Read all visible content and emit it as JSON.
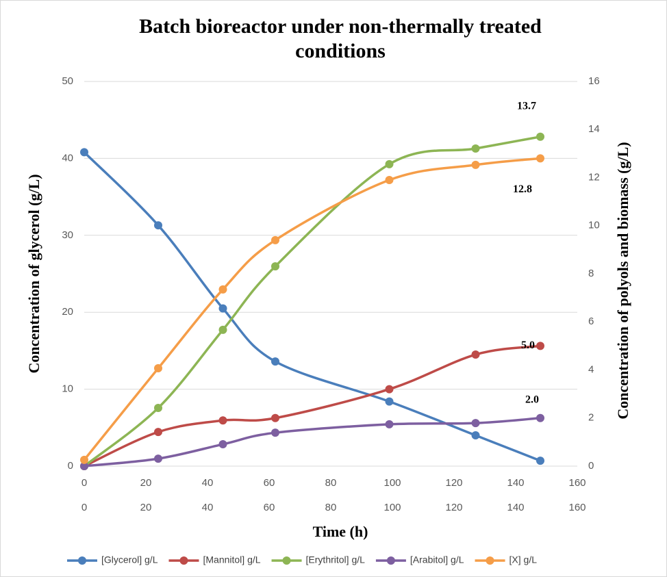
{
  "chart_data": {
    "type": "line",
    "title": "Batch bioreactor under non-thermally treated conditions",
    "x_label": "Time (h)",
    "y_label": "Concentration of glycerol (g/L)",
    "y2_label": "Concentration of polyols and biomass (g/L)",
    "x": [
      0,
      24,
      45,
      62,
      99,
      127,
      148
    ],
    "xlim": [
      0,
      160
    ],
    "xticks": [
      0,
      20,
      40,
      60,
      80,
      100,
      120,
      140,
      160
    ],
    "ylim": [
      0,
      50
    ],
    "yticks": [
      0,
      10,
      20,
      30,
      40,
      50
    ],
    "y2lim": [
      0,
      16
    ],
    "y2ticks": [
      0,
      2,
      4,
      6,
      8,
      10,
      12,
      14,
      16
    ],
    "grid": true,
    "smooth": true,
    "legend": "bottom",
    "series": [
      {
        "name": "[Glycerol] g/L",
        "color": "#4a7ebb",
        "values": [
          40.8,
          31.3,
          20.5,
          13.6,
          8.4,
          4.0,
          0.7
        ]
      },
      {
        "name": "[Mannitol] g/L",
        "color": "#be4b48",
        "axis": "y2",
        "values": [
          0,
          1.42,
          1.9,
          2.0,
          3.2,
          4.64,
          5.0
        ],
        "value_labels": [
          null,
          null,
          null,
          null,
          null,
          null,
          "5.0"
        ]
      },
      {
        "name": "[Erythritol] g/L",
        "color": "#8db554",
        "axis": "y2",
        "values": [
          0,
          2.42,
          5.67,
          8.31,
          12.56,
          13.21,
          13.7
        ],
        "value_labels": [
          null,
          null,
          null,
          null,
          null,
          null,
          "13.7"
        ]
      },
      {
        "name": "[Arabitol] g/L",
        "color": "#7d5fa0",
        "axis": "y2",
        "values": [
          0,
          0.31,
          0.91,
          1.39,
          1.74,
          1.79,
          2.0
        ],
        "value_labels": [
          null,
          null,
          null,
          null,
          null,
          null,
          "2.0"
        ]
      },
      {
        "name": "[X] g/L",
        "color": "#f59d48",
        "axis": "y2",
        "values": [
          0.26,
          4.07,
          7.35,
          9.4,
          11.9,
          12.53,
          12.8
        ],
        "value_labels": [
          null,
          null,
          null,
          null,
          null,
          null,
          "12.8"
        ]
      }
    ]
  }
}
